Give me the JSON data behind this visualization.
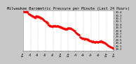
{
  "title": "Milwaukee Barometric Pressure per Minute (Last 24 Hours)",
  "ylabel_values": [
    "30.4",
    "30.3",
    "30.2",
    "30.1",
    "30.0",
    "29.9",
    "29.8",
    "29.7",
    "29.6",
    "29.5",
    "29.4",
    "29.3",
    "29.2"
  ],
  "ylim": [
    29.15,
    30.45
  ],
  "xlim": [
    0,
    1440
  ],
  "line_color": "#ff0000",
  "background_color": "#c8c8c8",
  "plot_bg": "#ffffff",
  "grid_color": "#aaaaaa",
  "title_fontsize": 3.8,
  "tick_fontsize": 2.8,
  "num_points": 1440,
  "start_pressure": 30.38,
  "end_pressure": 29.22,
  "noise_scale": 0.012,
  "x_tick_positions": [
    0,
    120,
    240,
    360,
    480,
    600,
    720,
    840,
    960,
    1080,
    1200,
    1320,
    1440
  ],
  "x_tick_labels": [
    "12a",
    "2a",
    "4a",
    "6a",
    "8a",
    "10a",
    "12p",
    "2p",
    "4p",
    "6p",
    "8p",
    "10p",
    "12a"
  ]
}
